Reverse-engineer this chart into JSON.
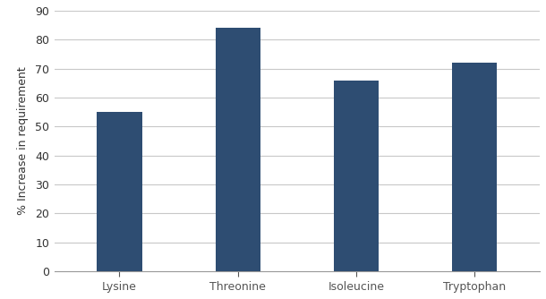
{
  "categories": [
    "Lysine",
    "Threonine",
    "Isoleucine",
    "Tryptophan"
  ],
  "values": [
    55,
    84,
    66,
    72
  ],
  "bar_color": "#2E4D72",
  "ylabel": "% Increase in requirement",
  "ylim": [
    0,
    90
  ],
  "yticks": [
    0,
    10,
    20,
    30,
    40,
    50,
    60,
    70,
    80,
    90
  ],
  "background_color": "#ffffff",
  "grid_color": "#c8c8c8",
  "bar_width": 0.38,
  "tick_color": "#555555"
}
